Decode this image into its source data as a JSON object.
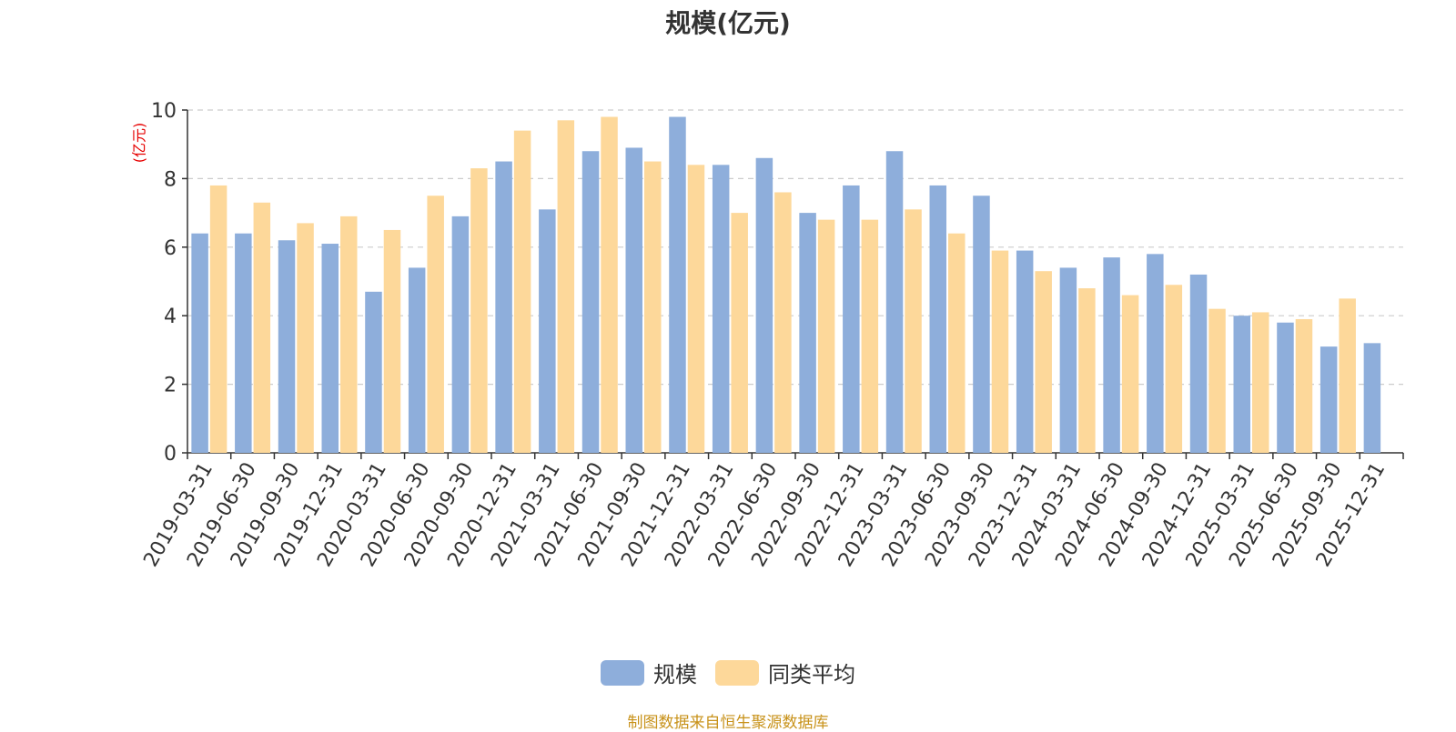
{
  "chart_data": {
    "type": "bar",
    "title": "规模(亿元)",
    "ylabel": "(亿元)",
    "ylim": [
      0,
      10
    ],
    "yticks": [
      0,
      2,
      4,
      6,
      8,
      10
    ],
    "grid": true,
    "legend_position": "bottom-center",
    "categories": [
      "2019-03-31",
      "2019-06-30",
      "2019-09-30",
      "2019-12-31",
      "2020-03-31",
      "2020-06-30",
      "2020-09-30",
      "2020-12-31",
      "2021-03-31",
      "2021-06-30",
      "2021-09-30",
      "2021-12-31",
      "2022-03-31",
      "2022-06-30",
      "2022-09-30",
      "2022-12-31",
      "2023-03-31",
      "2023-06-30",
      "2023-09-30",
      "2023-12-31",
      "2024-03-31",
      "2024-06-30",
      "2024-09-30",
      "2024-12-31",
      "2025-03-31",
      "2025-06-30",
      "2025-09-30",
      "2025-12-31"
    ],
    "series": [
      {
        "name": "规模",
        "color": "#8eaedb",
        "values": [
          6.4,
          6.4,
          6.2,
          6.1,
          4.7,
          5.4,
          6.9,
          8.5,
          7.1,
          8.8,
          8.9,
          9.8,
          8.4,
          8.6,
          7.0,
          7.8,
          8.8,
          7.8,
          7.5,
          5.9,
          5.4,
          5.7,
          5.8,
          5.2,
          4.0,
          3.8,
          3.1,
          3.2
        ]
      },
      {
        "name": "同类平均",
        "color": "#fdd89a",
        "values": [
          7.8,
          7.3,
          6.7,
          6.9,
          6.5,
          7.5,
          8.3,
          9.4,
          9.7,
          9.8,
          8.5,
          8.4,
          7.0,
          7.6,
          6.8,
          6.8,
          7.1,
          6.4,
          5.9,
          5.3,
          4.8,
          4.6,
          4.9,
          4.2,
          4.1,
          3.9,
          4.5,
          null
        ]
      }
    ]
  },
  "source_text": "制图数据来自恒生聚源数据库"
}
